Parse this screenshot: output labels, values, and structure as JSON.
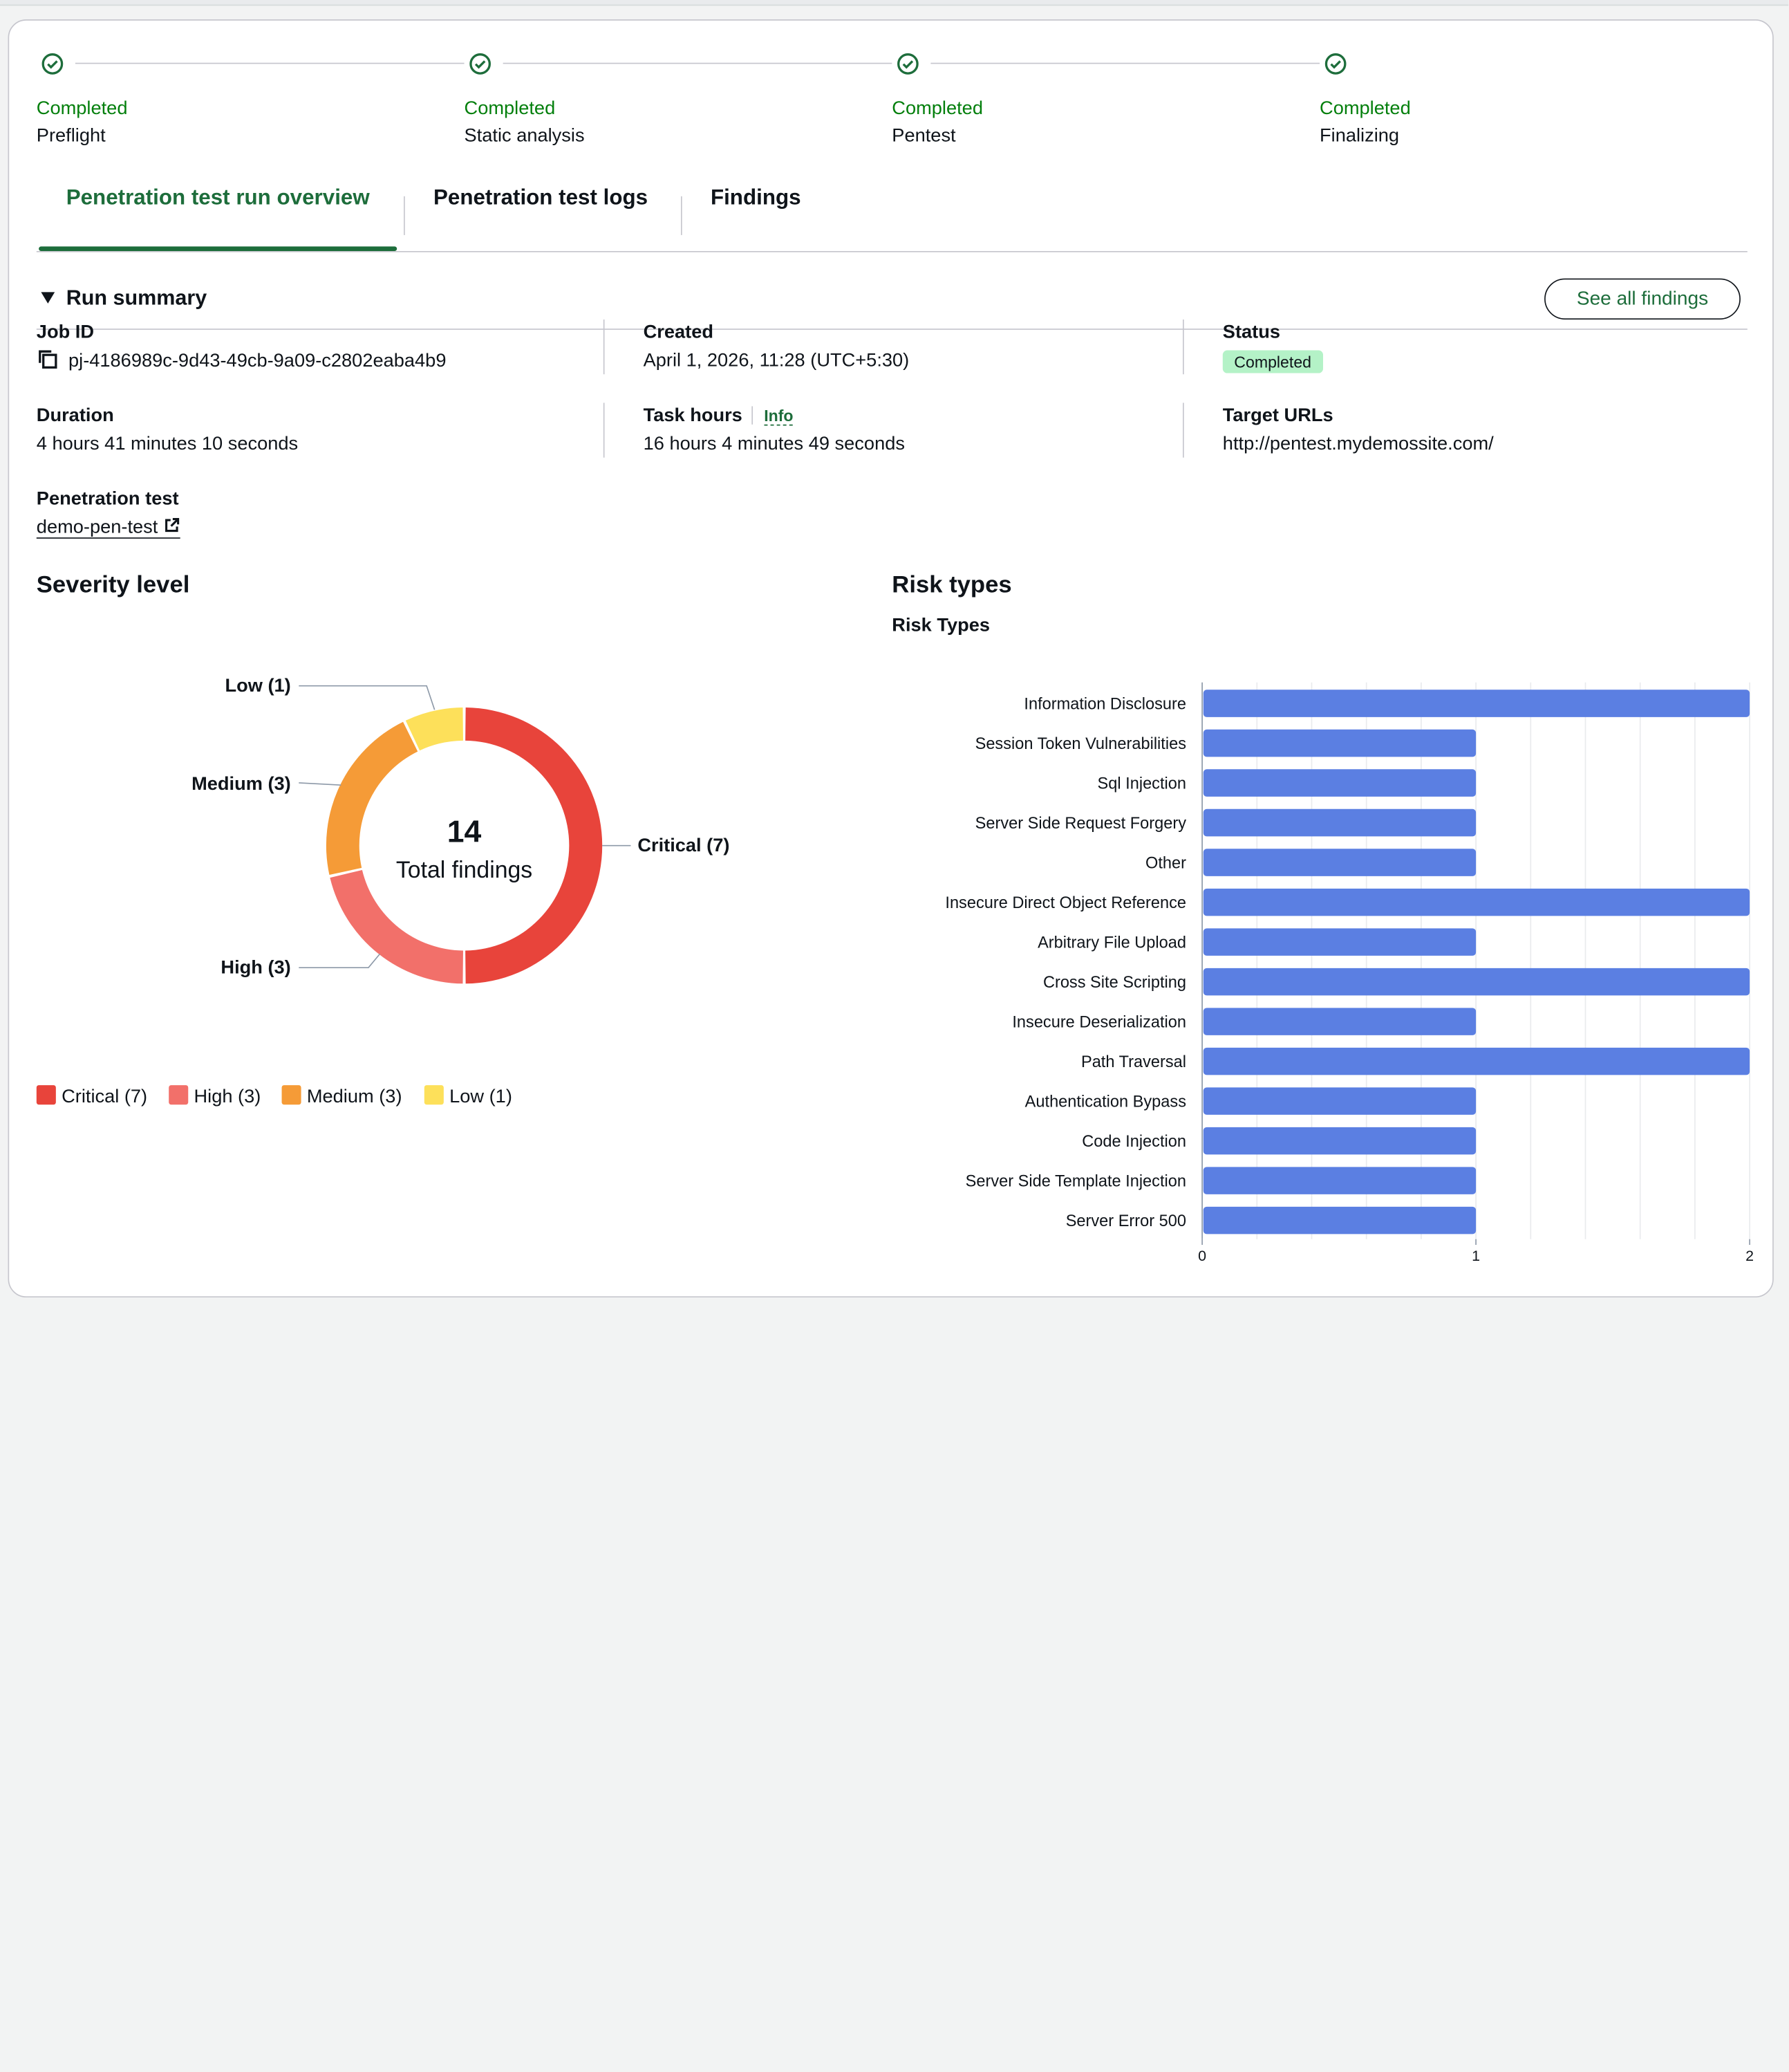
{
  "steps": [
    {
      "state": "Completed",
      "name": "Preflight"
    },
    {
      "state": "Completed",
      "name": "Static analysis"
    },
    {
      "state": "Completed",
      "name": "Pentest"
    },
    {
      "state": "Completed",
      "name": "Finalizing"
    }
  ],
  "tabs": [
    {
      "label": "Penetration test run overview",
      "active": true
    },
    {
      "label": "Penetration test logs",
      "active": false
    },
    {
      "label": "Findings",
      "active": false
    }
  ],
  "run_summary": {
    "title": "Run summary",
    "see_all_label": "See all findings",
    "job_id_label": "Job ID",
    "job_id": "pj-4186989c-9d43-49cb-9a09-c2802eaba4b9",
    "created_label": "Created",
    "created": "April 1, 2026, 11:28 (UTC+5:30)",
    "status_label": "Status",
    "status": "Completed",
    "duration_label": "Duration",
    "duration": "4 hours 41 minutes 10 seconds",
    "task_hours_label": "Task hours",
    "info_label": "Info",
    "task_hours": "16 hours 4 minutes 49 seconds",
    "target_urls_label": "Target URLs",
    "target_url": "http://pentest.mydemossite.com/",
    "pentest_label": "Penetration test",
    "pentest_name": "demo-pen-test"
  },
  "colors": {
    "accent": "#1d6d3b",
    "success": "#037f0c",
    "critical": "#e8443b",
    "high": "#f2706a",
    "medium": "#f59b37",
    "low": "#fde05a",
    "bar": "#5b7fe2"
  },
  "chart_data": [
    {
      "type": "pie",
      "title": "Severity level",
      "center_value": "14",
      "center_label": "Total findings",
      "slices": [
        {
          "label": "Critical (7)",
          "name": "Critical",
          "value": 7,
          "color": "#e8443b"
        },
        {
          "label": "High (3)",
          "name": "High",
          "value": 3,
          "color": "#f2706a"
        },
        {
          "label": "Medium (3)",
          "name": "Medium",
          "value": 3,
          "color": "#f59b37"
        },
        {
          "label": "Low (1)",
          "name": "Low",
          "value": 1,
          "color": "#fde05a"
        }
      ]
    },
    {
      "type": "bar",
      "orientation": "horizontal",
      "section_title": "Risk types",
      "title": "Risk Types",
      "categories": [
        "Information Disclosure",
        "Session Token Vulnerabilities",
        "Sql Injection",
        "Server Side Request Forgery",
        "Other",
        "Insecure Direct Object Reference",
        "Arbitrary File Upload",
        "Cross Site Scripting",
        "Insecure Deserialization",
        "Path Traversal",
        "Authentication Bypass",
        "Code Injection",
        "Server Side Template Injection",
        "Server Error 500"
      ],
      "values": [
        2,
        1,
        1,
        1,
        1,
        2,
        1,
        2,
        1,
        2,
        1,
        1,
        1,
        1
      ],
      "xlim": [
        0,
        2
      ],
      "xticks": [
        "0",
        "1",
        "2"
      ],
      "grid": true
    }
  ]
}
